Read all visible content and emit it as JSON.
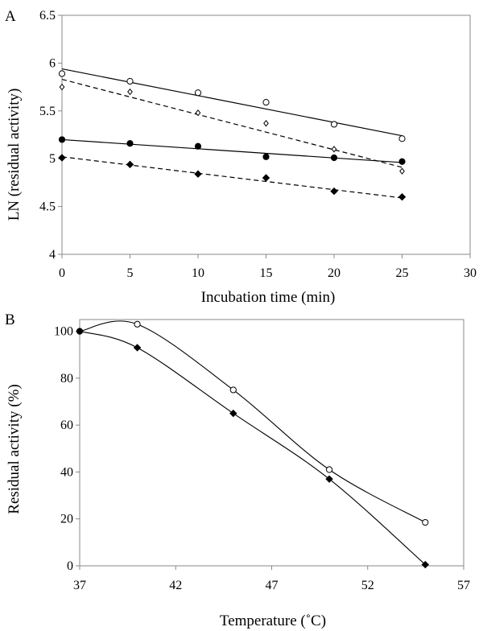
{
  "chart_data": [
    {
      "panel": "A",
      "type": "scatter",
      "xlabel": "Incubation time (min)",
      "ylabel": "LN (residual activity)",
      "xlim": [
        0,
        30
      ],
      "ylim": [
        4,
        6.5
      ],
      "x_ticks": [
        "0",
        "5",
        "10",
        "15",
        "20",
        "25",
        "30"
      ],
      "y_ticks": [
        "4",
        "4.5",
        "5",
        "5.5",
        "6",
        "6.5"
      ],
      "grid": false,
      "legend": "none",
      "series": [
        {
          "marker": "open-circle",
          "x": [
            0,
            5,
            10,
            15,
            20,
            25
          ],
          "y": [
            5.89,
            5.81,
            5.69,
            5.59,
            5.36,
            5.21
          ],
          "trendline": {
            "style": "solid",
            "y_start": 5.94,
            "y_end": 5.24
          }
        },
        {
          "marker": "open-diamond",
          "x": [
            0,
            5,
            10,
            15,
            20,
            25
          ],
          "y": [
            5.75,
            5.7,
            5.48,
            5.37,
            5.1,
            4.87
          ],
          "trendline": {
            "style": "dashed",
            "y_start": 5.83,
            "y_end": 4.91
          }
        },
        {
          "marker": "filled-circle",
          "x": [
            0,
            5,
            10,
            15,
            20,
            25
          ],
          "y": [
            5.2,
            5.16,
            5.13,
            5.02,
            5.01,
            4.97
          ],
          "trendline": {
            "style": "solid",
            "y_start": 5.2,
            "y_end": 4.96
          }
        },
        {
          "marker": "filled-diamond",
          "x": [
            0,
            5,
            10,
            15,
            20,
            25
          ],
          "y": [
            5.01,
            4.94,
            4.84,
            4.8,
            4.66,
            4.6
          ],
          "trendline": {
            "style": "dashed",
            "y_start": 5.02,
            "y_end": 4.59
          }
        }
      ]
    },
    {
      "panel": "B",
      "type": "line",
      "xlabel": "Temperature (˚C)",
      "ylabel": "Residual activity (%)",
      "xlim": [
        37,
        57
      ],
      "ylim": [
        0,
        105
      ],
      "x_ticks": [
        "37",
        "42",
        "47",
        "52",
        "57"
      ],
      "y_ticks": [
        "0",
        "20",
        "40",
        "60",
        "80",
        "100"
      ],
      "grid": false,
      "legend": "none",
      "series": [
        {
          "marker": "open-circle",
          "smooth": true,
          "x": [
            37,
            40,
            45,
            50,
            55
          ],
          "y": [
            100,
            103,
            75,
            41,
            18.5
          ]
        },
        {
          "marker": "filled-diamond",
          "smooth": true,
          "x": [
            37,
            40,
            45,
            50,
            55
          ],
          "y": [
            100,
            93,
            65,
            37,
            0.5
          ]
        }
      ]
    }
  ]
}
